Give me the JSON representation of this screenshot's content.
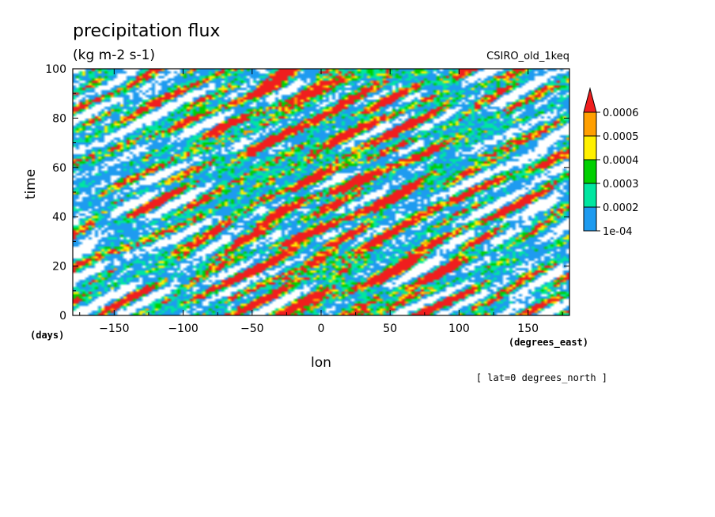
{
  "chart_data": {
    "type": "heatmap",
    "title": "precipitation flux",
    "units": "(kg m-2 s-1)",
    "dataset": "CSIRO_old_1keq",
    "xlabel": "lon",
    "x_units": "(degrees_east)",
    "ylabel": "time",
    "y_units": "(days)",
    "footnote": "[ lat=0 degrees_north ]",
    "xlim": [
      -180,
      180
    ],
    "ylim": [
      0,
      100
    ],
    "x_ticks": [
      -150,
      -100,
      -50,
      0,
      50,
      100,
      150
    ],
    "x_tick_labels": [
      "−150",
      "−100",
      "−50",
      "0",
      "50",
      "100",
      "150"
    ],
    "y_ticks": [
      0,
      20,
      40,
      60,
      80,
      100
    ],
    "y_tick_labels": [
      "0",
      "20",
      "40",
      "60",
      "80",
      "100"
    ],
    "colorbar": {
      "levels": [
        0.0001,
        0.0002,
        0.0003,
        0.0004,
        0.0005,
        0.0006
      ],
      "labels": [
        "1e-04",
        "0.0002",
        "0.0003",
        "0.0004",
        "0.0005",
        "0.0006"
      ],
      "colors": [
        "#ffffff",
        "#1e9bf0",
        "#00e6a0",
        "#00d000",
        "#fff000",
        "#ff9f00",
        "#f01e1e"
      ]
    },
    "grid": false
  }
}
